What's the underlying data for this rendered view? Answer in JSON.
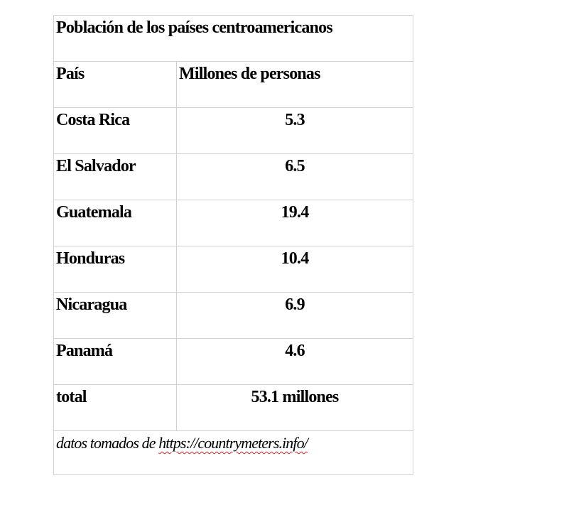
{
  "table": {
    "title": "Población de los países centroamericanos",
    "headers": [
      "País",
      "Millones de personas"
    ],
    "rows": [
      {
        "country": "Costa Rica",
        "value": "5.3"
      },
      {
        "country": "El Salvador",
        "value": "6.5"
      },
      {
        "country": "Guatemala",
        "value": "19.4"
      },
      {
        "country": "Honduras",
        "value": "10.4"
      },
      {
        "country": "Nicaragua",
        "value": "6.9"
      },
      {
        "country": "Panamá",
        "value": "4.6"
      }
    ],
    "total_label": "total",
    "total_value": "53.1 millones",
    "source_prefix": "datos tomados de ",
    "source_url": "https://countrymeters.info/"
  }
}
